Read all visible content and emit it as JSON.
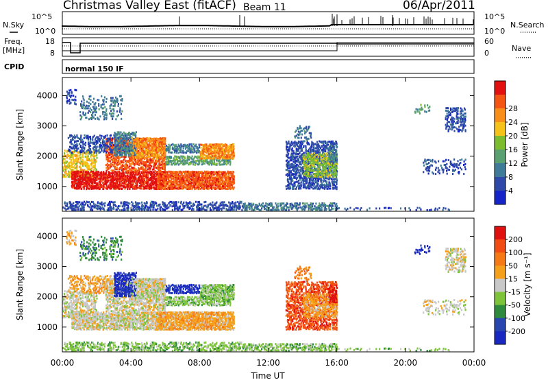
{
  "header": {
    "site": "Christmas Valley East (fitACF)",
    "beam": "Beam 11",
    "date": "06/Apr/2011"
  },
  "top_panels": {
    "nsky_label": "N.Sky",
    "nsearch_label": "N.Search",
    "noise_ticks": [
      "10^5",
      "10^0"
    ],
    "freq_label_1": "Freq.",
    "freq_label_2": "[MHz]",
    "freq_ticks": [
      "18",
      "8"
    ],
    "nave_label": "Nave",
    "nave_ticks": [
      "60",
      "0"
    ],
    "cpid_label": "CPID",
    "cpid_text": "normal 150 IF"
  },
  "chart_data": [
    {
      "type": "heatmap",
      "name": "power",
      "ylabel": "Slant Range [km]",
      "xlabel": "",
      "ylim": [
        180,
        4600
      ],
      "yticks": [
        1000,
        2000,
        3000,
        4000
      ],
      "xticks": [
        "00:00",
        "04:00",
        "08:00",
        "12:00",
        "16:00",
        "20:00",
        "00:00"
      ],
      "colorbar_label": "Power [dB]",
      "colorbar_ticks": [
        "4",
        "8",
        "12",
        "16",
        "20",
        "24",
        "28"
      ],
      "colors": [
        "#1525c8",
        "#2f49a8",
        "#3f7a98",
        "#5aa070",
        "#7bbd2f",
        "#f5c21a",
        "#f78f1a",
        "#f55512",
        "#e21010"
      ]
    },
    {
      "type": "heatmap",
      "name": "velocity",
      "ylabel": "Slant Range [km]",
      "xlabel": "Time UT",
      "ylim": [
        180,
        4600
      ],
      "yticks": [
        1000,
        2000,
        3000,
        4000
      ],
      "xticks": [
        "00:00",
        "04:00",
        "08:00",
        "12:00",
        "16:00",
        "20:00",
        "00:00"
      ],
      "colorbar_label": "Velocity [m s⁻¹]",
      "colorbar_ticks": [
        "200",
        "100",
        "50",
        "15",
        "-15",
        "-50",
        "-100",
        "-200"
      ],
      "colors": [
        "#1828c0",
        "#2846b0",
        "#2e8a3c",
        "#7ec43a",
        "#c8c8c8",
        "#f5a01a",
        "#f57a16",
        "#f04c14",
        "#e01010"
      ]
    }
  ]
}
